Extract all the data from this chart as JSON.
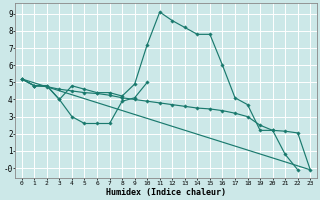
{
  "xlabel": "Humidex (Indice chaleur)",
  "background_color": "#cce8e8",
  "grid_color": "#ffffff",
  "line_color": "#1a7a6e",
  "xlim": [
    -0.5,
    23.5
  ],
  "ylim": [
    -0.6,
    9.6
  ],
  "xticks": [
    0,
    1,
    2,
    3,
    4,
    5,
    6,
    7,
    8,
    9,
    10,
    11,
    12,
    13,
    14,
    15,
    16,
    17,
    18,
    19,
    20,
    21,
    22,
    23
  ],
  "yticks": [
    0,
    1,
    2,
    3,
    4,
    5,
    6,
    7,
    8,
    9
  ],
  "ytick_labels": [
    "-0",
    "1",
    "2",
    "3",
    "4",
    "5",
    "6",
    "7",
    "8",
    "9"
  ],
  "line1_x": [
    0,
    1,
    2,
    3,
    4,
    5,
    6,
    7,
    8,
    9,
    10,
    11,
    12,
    13,
    14,
    15,
    16,
    17,
    18,
    19,
    20,
    21,
    22
  ],
  "line1_y": [
    5.2,
    4.8,
    4.8,
    4.0,
    4.8,
    4.6,
    4.4,
    4.4,
    4.2,
    4.9,
    7.2,
    9.1,
    8.6,
    8.2,
    7.8,
    7.8,
    6.0,
    4.1,
    3.7,
    2.2,
    2.2,
    0.8,
    -0.1
  ],
  "line2_x": [
    0,
    1,
    2,
    3,
    4,
    5,
    6,
    7,
    8,
    9,
    10
  ],
  "line2_y": [
    5.2,
    4.8,
    4.8,
    4.0,
    3.0,
    2.6,
    2.6,
    2.6,
    3.9,
    4.1,
    5.0
  ],
  "line3_x": [
    0,
    1,
    2,
    3,
    4,
    5,
    6,
    7,
    8,
    9,
    10,
    11,
    12,
    13,
    14,
    15,
    16,
    17,
    18,
    19,
    20,
    21,
    22,
    23
  ],
  "line3_y": [
    5.2,
    4.8,
    4.75,
    4.6,
    4.5,
    4.4,
    4.35,
    4.25,
    4.1,
    4.0,
    3.9,
    3.8,
    3.7,
    3.6,
    3.5,
    3.45,
    3.35,
    3.2,
    3.0,
    2.5,
    2.2,
    2.15,
    2.05,
    -0.1
  ],
  "line4_x": [
    0,
    23
  ],
  "line4_y": [
    5.2,
    -0.1
  ]
}
